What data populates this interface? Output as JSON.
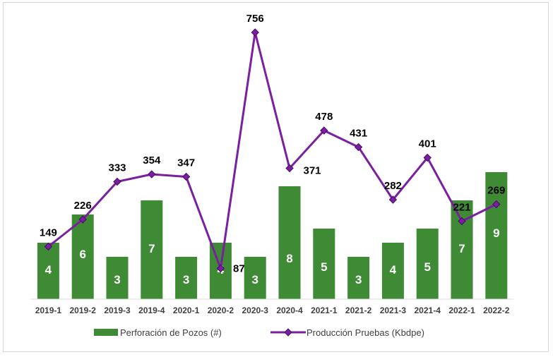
{
  "chart_data": {
    "type": "bar+line",
    "categories": [
      "2019-1",
      "2019-2",
      "2019-3",
      "2019-4",
      "2020-1",
      "2020-2",
      "2020-3",
      "2020-4",
      "2021-1",
      "2021-2",
      "2021-3",
      "2021-4",
      "2022-1",
      "2022-2"
    ],
    "series": [
      {
        "name": "Perforación de Pozos (#)",
        "type": "bar",
        "color": "#3f8a35",
        "values": [
          4,
          6,
          3,
          7,
          3,
          4,
          3,
          8,
          5,
          3,
          4,
          5,
          7,
          9
        ],
        "ylim": [
          0,
          20
        ]
      },
      {
        "name": "Producción Pruebas (Kbdpe)",
        "type": "line",
        "color": "#7a1fa0",
        "marker": "diamond",
        "values": [
          149,
          226,
          333,
          354,
          347,
          87,
          756,
          371,
          478,
          431,
          282,
          401,
          221,
          269
        ],
        "ylim": [
          0,
          800
        ]
      }
    ],
    "title": "",
    "xlabel": "",
    "ylabel": "",
    "grid": false,
    "legend": "bottom"
  }
}
